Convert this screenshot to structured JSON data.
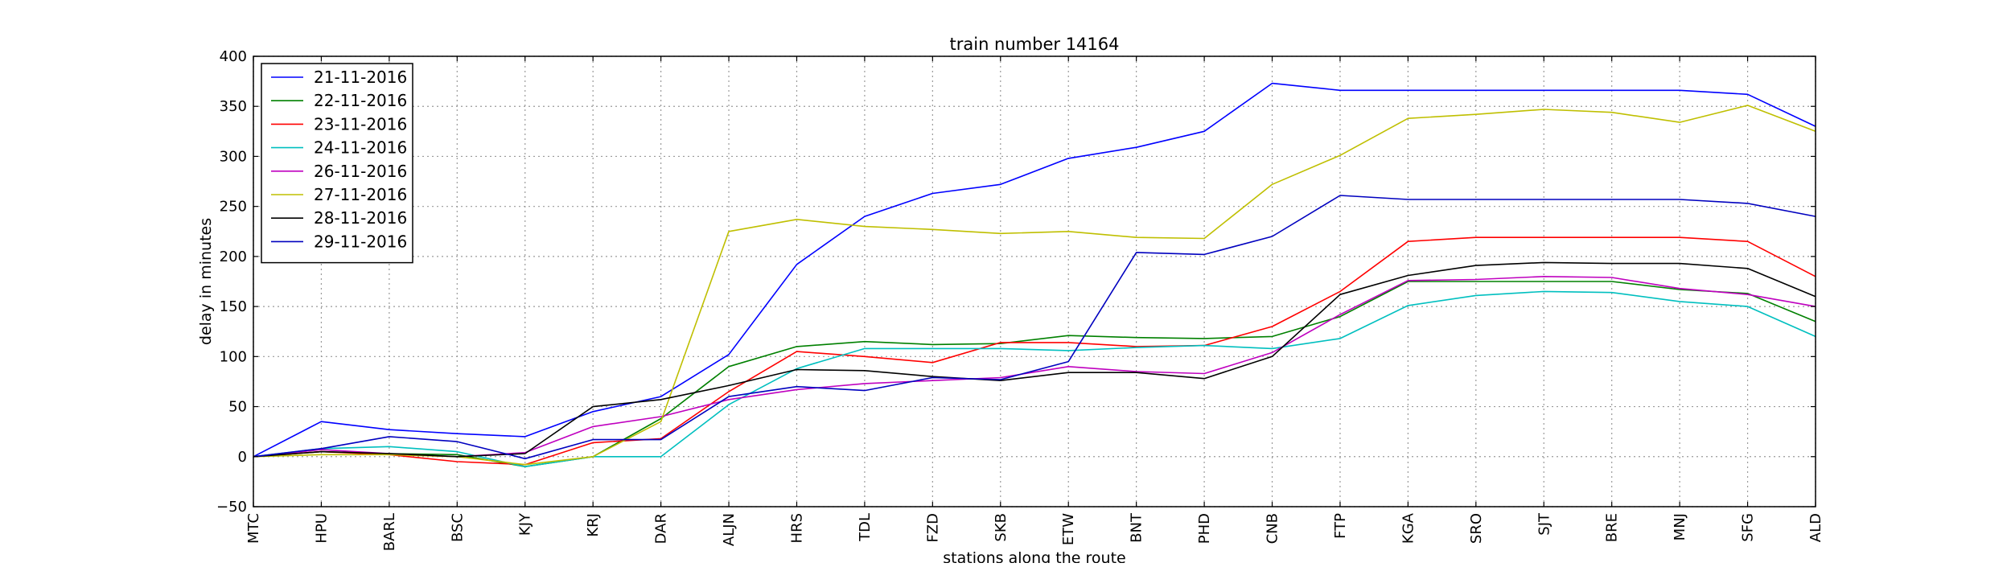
{
  "chart_data": {
    "type": "line",
    "title": "train number 14164",
    "xlabel": "stations along the route",
    "ylabel": "delay in minutes",
    "ylim": [
      -50,
      400
    ],
    "yticks": [
      -50,
      0,
      50,
      100,
      150,
      200,
      250,
      300,
      350,
      400
    ],
    "ytick_labels": [
      "−50",
      "0",
      "50",
      "100",
      "150",
      "200",
      "250",
      "300",
      "350",
      "400"
    ],
    "grid": true,
    "legend_position": "top-left",
    "categories": [
      "MTC",
      "HPU",
      "BARL",
      "BSC",
      "KJY",
      "KRJ",
      "DAR",
      "ALJN",
      "HRS",
      "TDL",
      "FZD",
      "SKB",
      "ETW",
      "BNT",
      "PHD",
      "CNB",
      "FTP",
      "KGA",
      "SRO",
      "SJT",
      "BRE",
      "MNJ",
      "SFG",
      "ALD"
    ],
    "series": [
      {
        "name": "21-11-2016",
        "color": "#0000ff",
        "values": [
          0,
          35,
          27,
          23,
          20,
          45,
          60,
          102,
          192,
          240,
          263,
          272,
          298,
          309,
          325,
          373,
          366,
          366,
          366,
          366,
          366,
          366,
          362,
          330
        ]
      },
      {
        "name": "22-11-2016",
        "color": "#008000",
        "values": [
          0,
          5,
          3,
          2,
          -10,
          0,
          38,
          90,
          110,
          115,
          112,
          113,
          121,
          119,
          118,
          120,
          140,
          175,
          175,
          175,
          175,
          167,
          163,
          135
        ]
      },
      {
        "name": "23-11-2016",
        "color": "#ff0000",
        "values": [
          0,
          5,
          2,
          -5,
          -8,
          14,
          18,
          65,
          105,
          100,
          94,
          114,
          114,
          110,
          111,
          130,
          165,
          215,
          219,
          219,
          219,
          219,
          215,
          180
        ]
      },
      {
        "name": "24-11-2016",
        "color": "#00bfbf",
        "values": [
          0,
          8,
          10,
          5,
          -10,
          0,
          0,
          52,
          88,
          108,
          108,
          108,
          106,
          109,
          111,
          108,
          118,
          151,
          161,
          165,
          164,
          155,
          150,
          120
        ]
      },
      {
        "name": "26-11-2016",
        "color": "#bf00bf",
        "values": [
          0,
          7,
          3,
          0,
          4,
          30,
          40,
          57,
          67,
          73,
          76,
          79,
          90,
          85,
          83,
          104,
          142,
          176,
          177,
          180,
          179,
          168,
          162,
          150
        ]
      },
      {
        "name": "27-11-2016",
        "color": "#bfbf00",
        "values": [
          0,
          2,
          2,
          0,
          -8,
          0,
          35,
          225,
          237,
          230,
          227,
          223,
          225,
          219,
          218,
          272,
          301,
          338,
          342,
          347,
          344,
          334,
          351,
          325
        ]
      },
      {
        "name": "28-11-2016",
        "color": "#000000",
        "values": [
          0,
          5,
          3,
          0,
          3,
          50,
          57,
          71,
          87,
          86,
          80,
          76,
          84,
          84,
          78,
          100,
          162,
          181,
          191,
          194,
          193,
          193,
          188,
          160
        ]
      },
      {
        "name": "29-11-2016",
        "color": "#0000bf",
        "values": [
          0,
          8,
          20,
          15,
          -2,
          17,
          17,
          60,
          70,
          66,
          79,
          77,
          95,
          204,
          202,
          220,
          261,
          257,
          257,
          257,
          257,
          257,
          253,
          240
        ]
      }
    ]
  }
}
